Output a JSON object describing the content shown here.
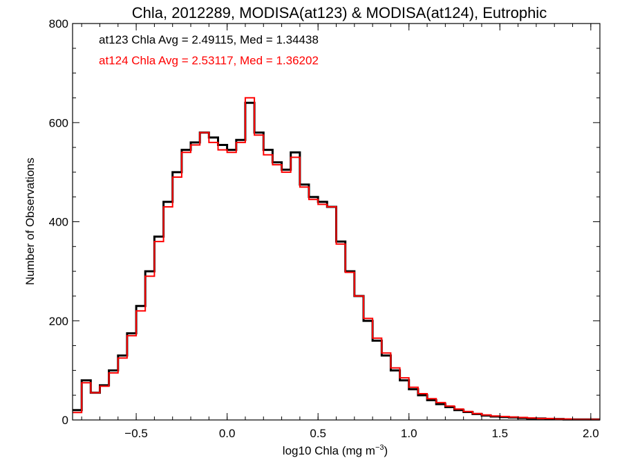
{
  "chart_data": {
    "type": "histogram",
    "title": "Chla, 2012289, MODISA(at123) & MODISA(at124), Eutrophic",
    "xlabel_main": "log10 Chla (mg m",
    "xlabel_exp": "−3",
    "xlabel_close": ")",
    "ylabel": "Number of Observations",
    "xlim": [
      -0.85,
      2.05
    ],
    "ylim": [
      0,
      800
    ],
    "xticks": [
      -0.5,
      0.0,
      0.5,
      1.0,
      1.5,
      2.0
    ],
    "xtick_labels": [
      "−0.5",
      "0.0",
      "0.5",
      "1.0",
      "1.5",
      "2.0"
    ],
    "yticks": [
      0,
      200,
      400,
      600,
      800
    ],
    "ytick_labels": [
      "0",
      "200",
      "400",
      "600",
      "800"
    ],
    "grid": false,
    "annotations": [
      {
        "text": "at123 Chla Avg = 2.49115, Med = 1.34438",
        "color": "#000000"
      },
      {
        "text": "at124 Chla Avg = 2.53117, Med = 1.36202",
        "color": "#ff0000"
      }
    ],
    "series": [
      {
        "name": "at123",
        "color": "#000000",
        "x": [
          -0.85,
          -0.8,
          -0.75,
          -0.7,
          -0.65,
          -0.6,
          -0.55,
          -0.5,
          -0.45,
          -0.4,
          -0.35,
          -0.3,
          -0.25,
          -0.2,
          -0.15,
          -0.1,
          -0.05,
          0.0,
          0.05,
          0.1,
          0.15,
          0.2,
          0.25,
          0.3,
          0.35,
          0.4,
          0.45,
          0.5,
          0.55,
          0.6,
          0.65,
          0.7,
          0.75,
          0.8,
          0.85,
          0.9,
          0.95,
          1.0,
          1.05,
          1.1,
          1.15,
          1.2,
          1.25,
          1.3,
          1.35,
          1.4,
          1.45,
          1.5,
          1.55,
          1.6,
          1.65,
          1.7,
          1.75,
          1.8,
          1.85,
          1.9,
          1.95,
          2.0,
          2.05
        ],
        "y": [
          20,
          80,
          55,
          70,
          100,
          130,
          175,
          230,
          300,
          370,
          440,
          500,
          545,
          560,
          580,
          570,
          555,
          545,
          565,
          640,
          580,
          545,
          520,
          505,
          540,
          475,
          450,
          440,
          430,
          360,
          300,
          250,
          200,
          160,
          130,
          100,
          80,
          62,
          50,
          40,
          32,
          26,
          20,
          16,
          12,
          9,
          7,
          6,
          5,
          4,
          3,
          3,
          2,
          2,
          1,
          1,
          1,
          1,
          1
        ]
      },
      {
        "name": "at124",
        "color": "#ff0000",
        "x": [
          -0.85,
          -0.8,
          -0.75,
          -0.7,
          -0.65,
          -0.6,
          -0.55,
          -0.5,
          -0.45,
          -0.4,
          -0.35,
          -0.3,
          -0.25,
          -0.2,
          -0.15,
          -0.1,
          -0.05,
          0.0,
          0.05,
          0.1,
          0.15,
          0.2,
          0.25,
          0.3,
          0.35,
          0.4,
          0.45,
          0.5,
          0.55,
          0.6,
          0.65,
          0.7,
          0.75,
          0.8,
          0.85,
          0.9,
          0.95,
          1.0,
          1.05,
          1.1,
          1.15,
          1.2,
          1.25,
          1.3,
          1.35,
          1.4,
          1.45,
          1.5,
          1.55,
          1.6,
          1.65,
          1.7,
          1.75,
          1.8,
          1.85,
          1.9,
          1.95,
          2.0,
          2.05
        ],
        "y": [
          15,
          75,
          55,
          68,
          95,
          125,
          170,
          220,
          290,
          360,
          430,
          490,
          540,
          555,
          580,
          560,
          545,
          540,
          560,
          650,
          575,
          535,
          515,
          500,
          530,
          470,
          445,
          435,
          430,
          355,
          298,
          250,
          205,
          165,
          135,
          105,
          85,
          66,
          53,
          43,
          35,
          28,
          22,
          17,
          13,
          10,
          8,
          7,
          6,
          5,
          4,
          3,
          3,
          2,
          2,
          1,
          1,
          1,
          1
        ]
      }
    ]
  }
}
